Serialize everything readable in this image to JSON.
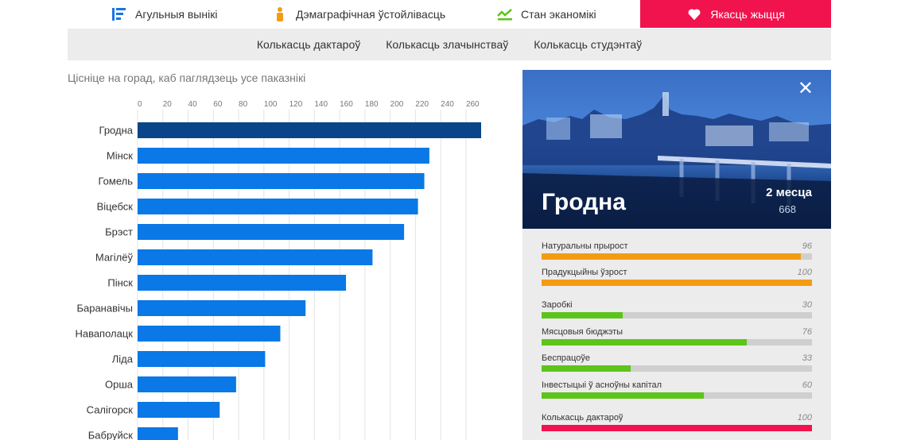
{
  "nav": {
    "tabs": [
      {
        "label": "Агульныя вынікі",
        "icon": "list-icon"
      },
      {
        "label": "Дэмаграфічная ўстойлівасць",
        "icon": "person-icon"
      },
      {
        "label": "Стан эканомікі",
        "icon": "trend-icon"
      },
      {
        "label": "Якасць жыцця",
        "icon": "heart-icon",
        "active": true
      }
    ],
    "subtabs": [
      "Колькасць дактароў",
      "Колькасць злачынстваў",
      "Колькасць студэнтаў"
    ]
  },
  "hint": "Цісніце на горад, каб паглядзець усе паказнікі",
  "chart_data": {
    "type": "bar",
    "orientation": "horizontal",
    "categories": [
      "Гродна",
      "Мінск",
      "Гомель",
      "Віцебск",
      "Брэст",
      "Магілёў",
      "Пінск",
      "Баранавічы",
      "Наваполацк",
      "Ліда",
      "Орша",
      "Салігорск",
      "Бабруйск"
    ],
    "values": [
      272,
      231,
      227,
      222,
      211,
      186,
      165,
      133,
      113,
      101,
      78,
      65,
      32
    ],
    "highlighted": "Гродна",
    "xticks": [
      0,
      20,
      40,
      60,
      80,
      100,
      120,
      140,
      160,
      180,
      200,
      220,
      240,
      260
    ],
    "xlim": [
      0,
      272
    ],
    "grid": true,
    "colors": {
      "bar": "#0a78e6",
      "highlight": "#0a4589"
    }
  },
  "detail": {
    "city": "Гродна",
    "rank_label": "2 месца",
    "rank_value": "668",
    "metrics": [
      {
        "label": "Натуральны прырост",
        "value": 96,
        "color": "#f39c12"
      },
      {
        "label": "Прадукцыйны ўзрост",
        "value": 100,
        "color": "#f39c12"
      },
      {
        "label": "Заробкі",
        "value": 30,
        "color": "#5cc41a"
      },
      {
        "label": "Мясцовыя бюджэты",
        "value": 76,
        "color": "#5cc41a"
      },
      {
        "label": "Беспрацоўе",
        "value": 33,
        "color": "#5cc41a"
      },
      {
        "label": "Інвестыцыі ў асноўны капітал",
        "value": 60,
        "color": "#5cc41a"
      },
      {
        "label": "Колькасць дактароў",
        "value": 100,
        "color": "#f0134d"
      }
    ]
  }
}
